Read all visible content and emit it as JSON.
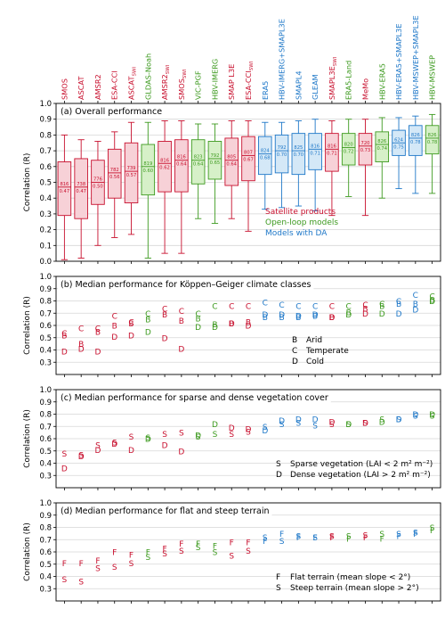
{
  "colors": {
    "satellite": "#c8102e",
    "openloop": "#3d9a1f",
    "da": "#1f78c8",
    "satellite_fill": "#f7d1d7",
    "openloop_fill": "#d6f0c8",
    "da_fill": "#d4e8f7"
  },
  "products": [
    {
      "name": "SMOS",
      "sub": "",
      "group": "satellite"
    },
    {
      "name": "ASCAT",
      "sub": "",
      "group": "satellite"
    },
    {
      "name": "AMSR2",
      "sub": "",
      "group": "satellite"
    },
    {
      "name": "ESA-CCI",
      "sub": "",
      "group": "satellite"
    },
    {
      "name": "ASCAT",
      "sub": "SWI",
      "group": "satellite"
    },
    {
      "name": "GLDAS-Noah",
      "sub": "",
      "group": "openloop"
    },
    {
      "name": "AMSR2",
      "sub": "SWI",
      "group": "satellite"
    },
    {
      "name": "SMOS",
      "sub": "SWI",
      "group": "satellite"
    },
    {
      "name": "VIC-PGF",
      "sub": "",
      "group": "openloop"
    },
    {
      "name": "HBV-IMERG",
      "sub": "",
      "group": "openloop"
    },
    {
      "name": "SMAP L3E",
      "sub": "",
      "group": "satellite"
    },
    {
      "name": "ESA-CCI",
      "sub": "SWI",
      "group": "satellite"
    },
    {
      "name": "ERA5",
      "sub": "",
      "group": "da"
    },
    {
      "name": "HBV-IMERG+SMAPL3E",
      "sub": "",
      "group": "da"
    },
    {
      "name": "SMAPL4",
      "sub": "",
      "group": "da"
    },
    {
      "name": "GLEAM",
      "sub": "",
      "group": "da"
    },
    {
      "name": "SMAPL3E",
      "sub": "SWI",
      "group": "satellite"
    },
    {
      "name": "ERA5-Land",
      "sub": "",
      "group": "openloop"
    },
    {
      "name": "MeMo",
      "sub": "",
      "group": "satellite"
    },
    {
      "name": "HBV-ERA5",
      "sub": "",
      "group": "openloop"
    },
    {
      "name": "HBV-ERA5+SMAPL3E",
      "sub": "",
      "group": "da"
    },
    {
      "name": "HBV-MSWEP+SMAPL3E",
      "sub": "",
      "group": "da"
    },
    {
      "name": "HBV-MSWEP",
      "sub": "",
      "group": "openloop"
    }
  ],
  "chart_data": [
    {
      "panel": "a",
      "type": "box",
      "title": "(a) Overall performance",
      "ylabel": "Correlation (R)",
      "ylim": [
        0,
        1.0
      ],
      "grid": true,
      "legend": {
        "placement": "bottom-right",
        "entries": [
          {
            "label": "Satellite products",
            "group": "satellite"
          },
          {
            "label": "Open-loop models",
            "group": "openloop"
          },
          {
            "label": "Models with DA",
            "group": "da"
          }
        ]
      },
      "boxes": [
        {
          "wlo": 0.01,
          "q1": 0.29,
          "med": 0.47,
          "q3": 0.63,
          "whi": 0.8,
          "n": "816",
          "medlabel": "0.47"
        },
        {
          "wlo": 0.02,
          "q1": 0.27,
          "med": 0.47,
          "q3": 0.65,
          "whi": 0.77,
          "n": "738",
          "medlabel": "0.47"
        },
        {
          "wlo": 0.1,
          "q1": 0.36,
          "med": 0.5,
          "q3": 0.64,
          "whi": 0.76,
          "n": "776",
          "medlabel": "0.50"
        },
        {
          "wlo": 0.15,
          "q1": 0.4,
          "med": 0.56,
          "q3": 0.71,
          "whi": 0.82,
          "n": "782",
          "medlabel": "0.56"
        },
        {
          "wlo": 0.17,
          "q1": 0.37,
          "med": 0.57,
          "q3": 0.75,
          "whi": 0.88,
          "n": "739",
          "medlabel": "0.57"
        },
        {
          "wlo": 0.02,
          "q1": 0.42,
          "med": 0.6,
          "q3": 0.74,
          "whi": 0.88,
          "n": "819",
          "medlabel": "0.60"
        },
        {
          "wlo": 0.05,
          "q1": 0.44,
          "med": 0.62,
          "q3": 0.76,
          "whi": 0.89,
          "n": "816",
          "medlabel": "0.62"
        },
        {
          "wlo": 0.05,
          "q1": 0.44,
          "med": 0.64,
          "q3": 0.77,
          "whi": 0.89,
          "n": "816",
          "medlabel": "0.64"
        },
        {
          "wlo": 0.27,
          "q1": 0.49,
          "med": 0.64,
          "q3": 0.77,
          "whi": 0.87,
          "n": "823",
          "medlabel": "0.64"
        },
        {
          "wlo": 0.24,
          "q1": 0.52,
          "med": 0.65,
          "q3": 0.76,
          "whi": 0.87,
          "n": "792",
          "medlabel": "0.65"
        },
        {
          "wlo": 0.27,
          "q1": 0.48,
          "med": 0.64,
          "q3": 0.78,
          "whi": 0.89,
          "n": "805",
          "medlabel": "0.64"
        },
        {
          "wlo": 0.19,
          "q1": 0.51,
          "med": 0.67,
          "q3": 0.79,
          "whi": 0.89,
          "n": "807",
          "medlabel": "0.67"
        },
        {
          "wlo": 0.33,
          "q1": 0.55,
          "med": 0.68,
          "q3": 0.79,
          "whi": 0.88,
          "n": "824",
          "medlabel": "0.68"
        },
        {
          "wlo": 0.34,
          "q1": 0.56,
          "med": 0.7,
          "q3": 0.8,
          "whi": 0.88,
          "n": "792",
          "medlabel": "0.70"
        },
        {
          "wlo": 0.35,
          "q1": 0.55,
          "med": 0.7,
          "q3": 0.81,
          "whi": 0.89,
          "n": "825",
          "medlabel": "0.70"
        },
        {
          "wlo": 0.32,
          "q1": 0.58,
          "med": 0.71,
          "q3": 0.81,
          "whi": 0.9,
          "n": "816",
          "medlabel": "0.71"
        },
        {
          "wlo": 0.29,
          "q1": 0.57,
          "med": 0.71,
          "q3": 0.81,
          "whi": 0.89,
          "n": "816",
          "medlabel": "0.71"
        },
        {
          "wlo": 0.41,
          "q1": 0.61,
          "med": 0.72,
          "q3": 0.81,
          "whi": 0.9,
          "n": "820",
          "medlabel": "0.72"
        },
        {
          "wlo": 0.29,
          "q1": 0.61,
          "med": 0.73,
          "q3": 0.81,
          "whi": 0.9,
          "n": "720",
          "medlabel": "0.73"
        },
        {
          "wlo": 0.4,
          "q1": 0.63,
          "med": 0.74,
          "q3": 0.82,
          "whi": 0.91,
          "n": "826",
          "medlabel": "0.74"
        },
        {
          "wlo": 0.46,
          "q1": 0.67,
          "med": 0.75,
          "q3": 0.83,
          "whi": 0.91,
          "n": "624",
          "medlabel": "0.75"
        },
        {
          "wlo": 0.43,
          "q1": 0.67,
          "med": 0.78,
          "q3": 0.86,
          "whi": 0.92,
          "n": "826",
          "medlabel": "0.78"
        },
        {
          "wlo": 0.43,
          "q1": 0.68,
          "med": 0.78,
          "q3": 0.86,
          "whi": 0.93,
          "n": "826",
          "medlabel": "0.78"
        }
      ]
    },
    {
      "panel": "b",
      "type": "scatter",
      "title": "(b) Median performance for Köppen–Geiger climate classes",
      "ylabel": "Correlation (R)",
      "ylim": [
        0.2,
        1.0
      ],
      "grid": true,
      "legend": {
        "placement": "bottom-right",
        "entries": [
          {
            "letter": "B",
            "label": "Arid"
          },
          {
            "letter": "C",
            "label": "Temperate"
          },
          {
            "letter": "D",
            "label": "Cold"
          }
        ]
      },
      "series": [
        {
          "letter": "B",
          "values": [
            0.52,
            0.45,
            0.55,
            0.6,
            0.62,
            0.65,
            0.69,
            0.64,
            0.66,
            0.61,
            0.62,
            0.63,
            0.67,
            0.67,
            0.67,
            0.68,
            0.67,
            0.71,
            0.74,
            0.76,
            0.78,
            0.78,
            0.81
          ]
        },
        {
          "letter": "C",
          "values": [
            0.54,
            0.58,
            0.58,
            0.68,
            0.63,
            0.7,
            0.74,
            0.72,
            0.7,
            0.76,
            0.76,
            0.76,
            0.79,
            0.77,
            0.76,
            0.76,
            0.76,
            0.76,
            0.77,
            0.78,
            0.8,
            0.85,
            0.84
          ]
        },
        {
          "letter": "D",
          "values": [
            0.39,
            0.41,
            0.39,
            0.51,
            0.52,
            0.55,
            0.5,
            0.41,
            0.59,
            0.59,
            0.62,
            0.6,
            0.69,
            0.69,
            0.68,
            0.69,
            0.67,
            0.69,
            0.7,
            0.7,
            0.7,
            0.73,
            0.8
          ]
        }
      ]
    },
    {
      "panel": "c",
      "type": "scatter",
      "title": "(c) Median performance for sparse and dense vegetation cover",
      "ylabel": "Correlation (R)",
      "ylim": [
        0.2,
        1.0
      ],
      "grid": true,
      "legend": {
        "placement": "bottom-right",
        "entries": [
          {
            "letter": "S",
            "label": "Sparse vegetation (LAI < 2 m² m⁻²)"
          },
          {
            "letter": "D",
            "label": "Dense vegetation (LAI > 2 m² m⁻²)"
          }
        ]
      },
      "series": [
        {
          "letter": "S",
          "values": [
            0.48,
            0.47,
            0.55,
            0.57,
            0.62,
            0.61,
            0.64,
            0.65,
            0.62,
            0.64,
            0.64,
            0.66,
            0.7,
            0.72,
            0.73,
            0.71,
            0.72,
            0.72,
            0.73,
            0.76,
            0.76,
            0.79,
            0.79
          ]
        },
        {
          "letter": "D",
          "values": [
            0.36,
            0.46,
            0.51,
            0.56,
            0.51,
            0.6,
            0.55,
            0.5,
            0.63,
            0.72,
            0.69,
            0.68,
            0.67,
            0.75,
            0.76,
            0.76,
            0.74,
            0.72,
            0.73,
            0.74,
            0.76,
            0.8,
            0.8
          ]
        }
      ]
    },
    {
      "panel": "d",
      "type": "scatter",
      "title": "(d) Median performance for flat and steep terrain",
      "ylabel": "Correlation (R)",
      "ylim": [
        0.2,
        1.0
      ],
      "grid": true,
      "legend": {
        "placement": "bottom-right",
        "entries": [
          {
            "letter": "F",
            "label": "Flat terrain (mean slope < 2°)"
          },
          {
            "letter": "S",
            "label": "Steep terrain (mean slope > 2°)"
          }
        ]
      },
      "series": [
        {
          "letter": "F",
          "values": [
            0.51,
            0.51,
            0.53,
            0.6,
            0.58,
            0.6,
            0.63,
            0.67,
            0.67,
            0.65,
            0.68,
            0.68,
            0.69,
            0.75,
            0.72,
            0.72,
            0.72,
            0.71,
            0.72,
            0.71,
            0.73,
            0.75,
            0.78
          ]
        },
        {
          "letter": "S",
          "values": [
            0.38,
            0.36,
            0.47,
            0.48,
            0.51,
            0.56,
            0.59,
            0.61,
            0.64,
            0.6,
            0.57,
            0.61,
            0.72,
            0.69,
            0.73,
            0.72,
            0.73,
            0.73,
            0.74,
            0.75,
            0.75,
            0.76,
            0.8
          ]
        }
      ]
    }
  ]
}
